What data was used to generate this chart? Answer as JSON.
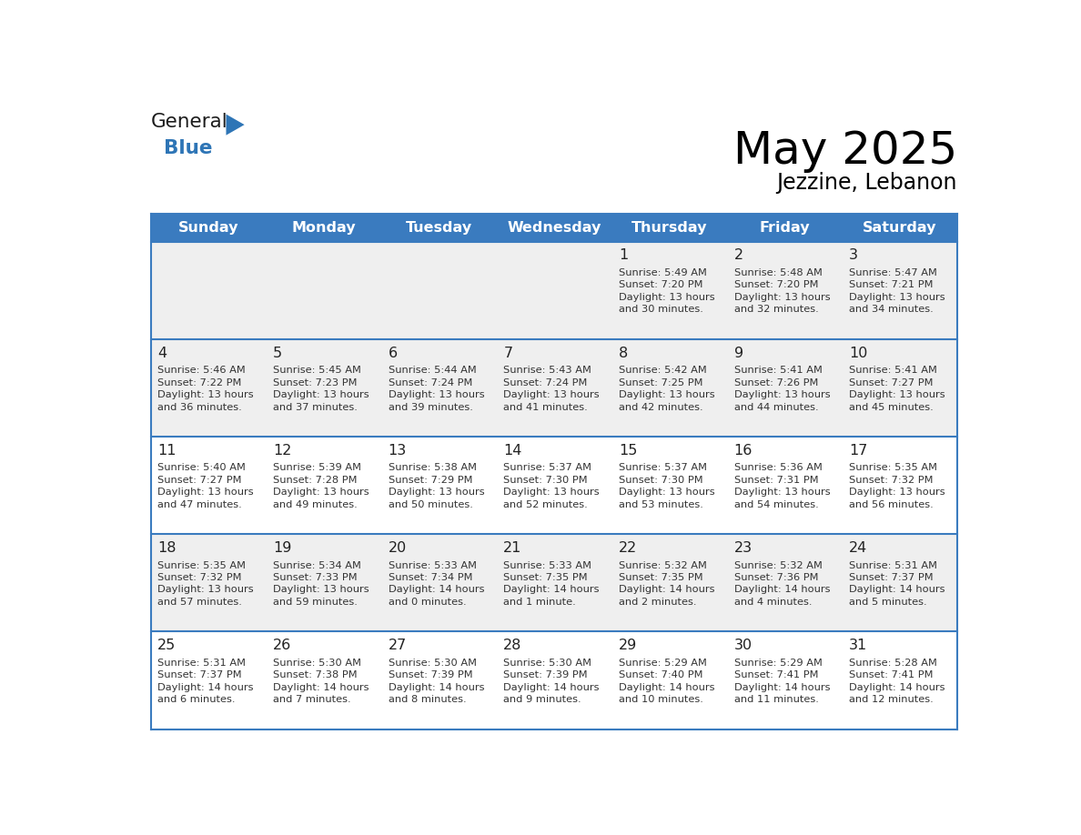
{
  "title": "May 2025",
  "subtitle": "Jezzine, Lebanon",
  "header_bg": "#3A7BBF",
  "header_text": "#FFFFFF",
  "row_bg_gray": "#EFEFEF",
  "row_bg_white": "#FFFFFF",
  "separator_color": "#3A7BBF",
  "text_color": "#333333",
  "day_num_color": "#222222",
  "day_headers": [
    "Sunday",
    "Monday",
    "Tuesday",
    "Wednesday",
    "Thursday",
    "Friday",
    "Saturday"
  ],
  "row_backgrounds": [
    "gray",
    "gray",
    "white",
    "gray",
    "white"
  ],
  "days": [
    {
      "day": null,
      "col": 0,
      "row": 0
    },
    {
      "day": null,
      "col": 1,
      "row": 0
    },
    {
      "day": null,
      "col": 2,
      "row": 0
    },
    {
      "day": null,
      "col": 3,
      "row": 0
    },
    {
      "day": 1,
      "col": 4,
      "row": 0,
      "sunrise": "5:49 AM",
      "sunset": "7:20 PM",
      "dl_line1": "Daylight: 13 hours",
      "dl_line2": "and 30 minutes."
    },
    {
      "day": 2,
      "col": 5,
      "row": 0,
      "sunrise": "5:48 AM",
      "sunset": "7:20 PM",
      "dl_line1": "Daylight: 13 hours",
      "dl_line2": "and 32 minutes."
    },
    {
      "day": 3,
      "col": 6,
      "row": 0,
      "sunrise": "5:47 AM",
      "sunset": "7:21 PM",
      "dl_line1": "Daylight: 13 hours",
      "dl_line2": "and 34 minutes."
    },
    {
      "day": 4,
      "col": 0,
      "row": 1,
      "sunrise": "5:46 AM",
      "sunset": "7:22 PM",
      "dl_line1": "Daylight: 13 hours",
      "dl_line2": "and 36 minutes."
    },
    {
      "day": 5,
      "col": 1,
      "row": 1,
      "sunrise": "5:45 AM",
      "sunset": "7:23 PM",
      "dl_line1": "Daylight: 13 hours",
      "dl_line2": "and 37 minutes."
    },
    {
      "day": 6,
      "col": 2,
      "row": 1,
      "sunrise": "5:44 AM",
      "sunset": "7:24 PM",
      "dl_line1": "Daylight: 13 hours",
      "dl_line2": "and 39 minutes."
    },
    {
      "day": 7,
      "col": 3,
      "row": 1,
      "sunrise": "5:43 AM",
      "sunset": "7:24 PM",
      "dl_line1": "Daylight: 13 hours",
      "dl_line2": "and 41 minutes."
    },
    {
      "day": 8,
      "col": 4,
      "row": 1,
      "sunrise": "5:42 AM",
      "sunset": "7:25 PM",
      "dl_line1": "Daylight: 13 hours",
      "dl_line2": "and 42 minutes."
    },
    {
      "day": 9,
      "col": 5,
      "row": 1,
      "sunrise": "5:41 AM",
      "sunset": "7:26 PM",
      "dl_line1": "Daylight: 13 hours",
      "dl_line2": "and 44 minutes."
    },
    {
      "day": 10,
      "col": 6,
      "row": 1,
      "sunrise": "5:41 AM",
      "sunset": "7:27 PM",
      "dl_line1": "Daylight: 13 hours",
      "dl_line2": "and 45 minutes."
    },
    {
      "day": 11,
      "col": 0,
      "row": 2,
      "sunrise": "5:40 AM",
      "sunset": "7:27 PM",
      "dl_line1": "Daylight: 13 hours",
      "dl_line2": "and 47 minutes."
    },
    {
      "day": 12,
      "col": 1,
      "row": 2,
      "sunrise": "5:39 AM",
      "sunset": "7:28 PM",
      "dl_line1": "Daylight: 13 hours",
      "dl_line2": "and 49 minutes."
    },
    {
      "day": 13,
      "col": 2,
      "row": 2,
      "sunrise": "5:38 AM",
      "sunset": "7:29 PM",
      "dl_line1": "Daylight: 13 hours",
      "dl_line2": "and 50 minutes."
    },
    {
      "day": 14,
      "col": 3,
      "row": 2,
      "sunrise": "5:37 AM",
      "sunset": "7:30 PM",
      "dl_line1": "Daylight: 13 hours",
      "dl_line2": "and 52 minutes."
    },
    {
      "day": 15,
      "col": 4,
      "row": 2,
      "sunrise": "5:37 AM",
      "sunset": "7:30 PM",
      "dl_line1": "Daylight: 13 hours",
      "dl_line2": "and 53 minutes."
    },
    {
      "day": 16,
      "col": 5,
      "row": 2,
      "sunrise": "5:36 AM",
      "sunset": "7:31 PM",
      "dl_line1": "Daylight: 13 hours",
      "dl_line2": "and 54 minutes."
    },
    {
      "day": 17,
      "col": 6,
      "row": 2,
      "sunrise": "5:35 AM",
      "sunset": "7:32 PM",
      "dl_line1": "Daylight: 13 hours",
      "dl_line2": "and 56 minutes."
    },
    {
      "day": 18,
      "col": 0,
      "row": 3,
      "sunrise": "5:35 AM",
      "sunset": "7:32 PM",
      "dl_line1": "Daylight: 13 hours",
      "dl_line2": "and 57 minutes."
    },
    {
      "day": 19,
      "col": 1,
      "row": 3,
      "sunrise": "5:34 AM",
      "sunset": "7:33 PM",
      "dl_line1": "Daylight: 13 hours",
      "dl_line2": "and 59 minutes."
    },
    {
      "day": 20,
      "col": 2,
      "row": 3,
      "sunrise": "5:33 AM",
      "sunset": "7:34 PM",
      "dl_line1": "Daylight: 14 hours",
      "dl_line2": "and 0 minutes."
    },
    {
      "day": 21,
      "col": 3,
      "row": 3,
      "sunrise": "5:33 AM",
      "sunset": "7:35 PM",
      "dl_line1": "Daylight: 14 hours",
      "dl_line2": "and 1 minute."
    },
    {
      "day": 22,
      "col": 4,
      "row": 3,
      "sunrise": "5:32 AM",
      "sunset": "7:35 PM",
      "dl_line1": "Daylight: 14 hours",
      "dl_line2": "and 2 minutes."
    },
    {
      "day": 23,
      "col": 5,
      "row": 3,
      "sunrise": "5:32 AM",
      "sunset": "7:36 PM",
      "dl_line1": "Daylight: 14 hours",
      "dl_line2": "and 4 minutes."
    },
    {
      "day": 24,
      "col": 6,
      "row": 3,
      "sunrise": "5:31 AM",
      "sunset": "7:37 PM",
      "dl_line1": "Daylight: 14 hours",
      "dl_line2": "and 5 minutes."
    },
    {
      "day": 25,
      "col": 0,
      "row": 4,
      "sunrise": "5:31 AM",
      "sunset": "7:37 PM",
      "dl_line1": "Daylight: 14 hours",
      "dl_line2": "and 6 minutes."
    },
    {
      "day": 26,
      "col": 1,
      "row": 4,
      "sunrise": "5:30 AM",
      "sunset": "7:38 PM",
      "dl_line1": "Daylight: 14 hours",
      "dl_line2": "and 7 minutes."
    },
    {
      "day": 27,
      "col": 2,
      "row": 4,
      "sunrise": "5:30 AM",
      "sunset": "7:39 PM",
      "dl_line1": "Daylight: 14 hours",
      "dl_line2": "and 8 minutes."
    },
    {
      "day": 28,
      "col": 3,
      "row": 4,
      "sunrise": "5:30 AM",
      "sunset": "7:39 PM",
      "dl_line1": "Daylight: 14 hours",
      "dl_line2": "and 9 minutes."
    },
    {
      "day": 29,
      "col": 4,
      "row": 4,
      "sunrise": "5:29 AM",
      "sunset": "7:40 PM",
      "dl_line1": "Daylight: 14 hours",
      "dl_line2": "and 10 minutes."
    },
    {
      "day": 30,
      "col": 5,
      "row": 4,
      "sunrise": "5:29 AM",
      "sunset": "7:41 PM",
      "dl_line1": "Daylight: 14 hours",
      "dl_line2": "and 11 minutes."
    },
    {
      "day": 31,
      "col": 6,
      "row": 4,
      "sunrise": "5:28 AM",
      "sunset": "7:41 PM",
      "dl_line1": "Daylight: 14 hours",
      "dl_line2": "and 12 minutes."
    }
  ]
}
